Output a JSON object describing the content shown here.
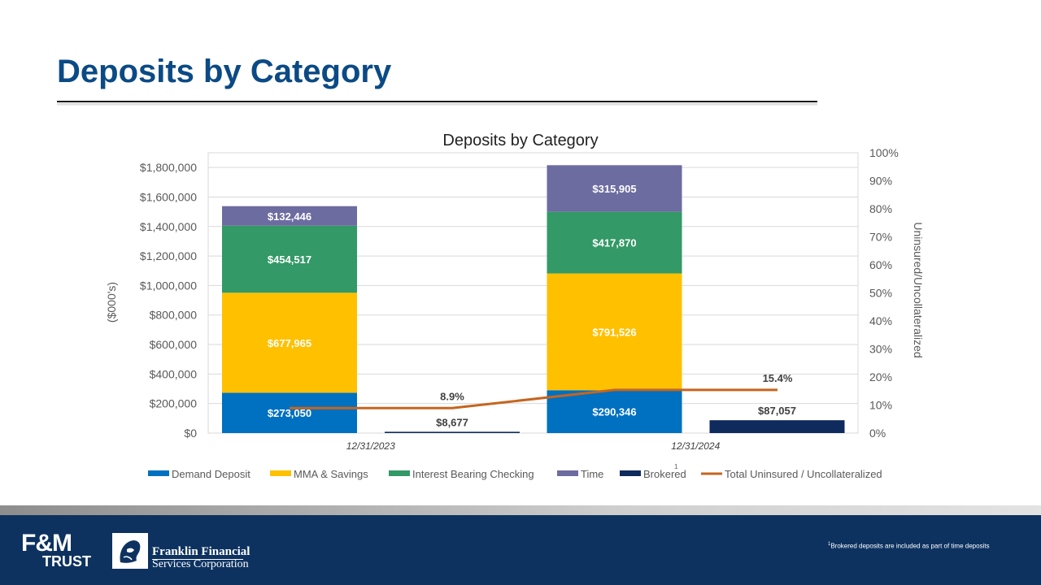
{
  "slide": {
    "title": "Deposits by Category",
    "footnote_marker": "1",
    "footnote_text": "Brokered deposits are included as part of time deposits"
  },
  "footer": {
    "logo_fm_line1": "F&M",
    "logo_fm_line2": "TRUST",
    "logo_ffsc_line1": "Franklin Financial",
    "logo_ffsc_line2": "Services Corporation"
  },
  "colors": {
    "title": "#0b4a85",
    "footer": "#0d3260",
    "demand": "#0070c0",
    "mma": "#ffc000",
    "ibc": "#339966",
    "time": "#6c6ca0",
    "brokered": "#0f2a5c",
    "line": "#c5651f"
  },
  "chart_data": {
    "type": "bar",
    "title": "Deposits by Category",
    "ylabel": "($000's)",
    "y2label": "Uninsured/Uncollateralized",
    "ylim": [
      0,
      1900000
    ],
    "y2lim": [
      0,
      100
    ],
    "yticks": [
      "$0",
      "$200,000",
      "$400,000",
      "$600,000",
      "$800,000",
      "$1,000,000",
      "$1,200,000",
      "$1,400,000",
      "$1,600,000",
      "$1,800,000"
    ],
    "y2ticks": [
      "0%",
      "10%",
      "20%",
      "30%",
      "40%",
      "50%",
      "60%",
      "70%",
      "80%",
      "90%",
      "100%"
    ],
    "categories": [
      "12/31/2023",
      "12/31/2024"
    ],
    "stacked_series": [
      {
        "name": "Demand Deposit",
        "color": "#0070c0",
        "values": [
          273050,
          290346
        ],
        "labels": [
          "$273,050",
          "$290,346"
        ]
      },
      {
        "name": "MMA & Savings",
        "color": "#ffc000",
        "values": [
          677965,
          791526
        ],
        "labels": [
          "$677,965",
          "$791,526"
        ]
      },
      {
        "name": "Interest Bearing Checking",
        "color": "#339966",
        "values": [
          454517,
          417870
        ],
        "labels": [
          "$454,517",
          "$417,870"
        ]
      },
      {
        "name": "Time",
        "color": "#6c6ca0",
        "values": [
          132446,
          315905
        ],
        "labels": [
          "$132,446",
          "$315,905"
        ]
      }
    ],
    "brokered": {
      "name": "Brokered",
      "superscript": "1",
      "color": "#0f2a5c",
      "values": [
        8677,
        87057
      ],
      "labels": [
        "$8,677",
        "$87,057"
      ]
    },
    "line_series": {
      "name": "Total Uninsured / Uncollateralized",
      "color": "#c5651f",
      "values": [
        8.9,
        15.4
      ],
      "labels": [
        "8.9%",
        "15.4%"
      ]
    },
    "legend_position": "bottom",
    "grid": true
  }
}
